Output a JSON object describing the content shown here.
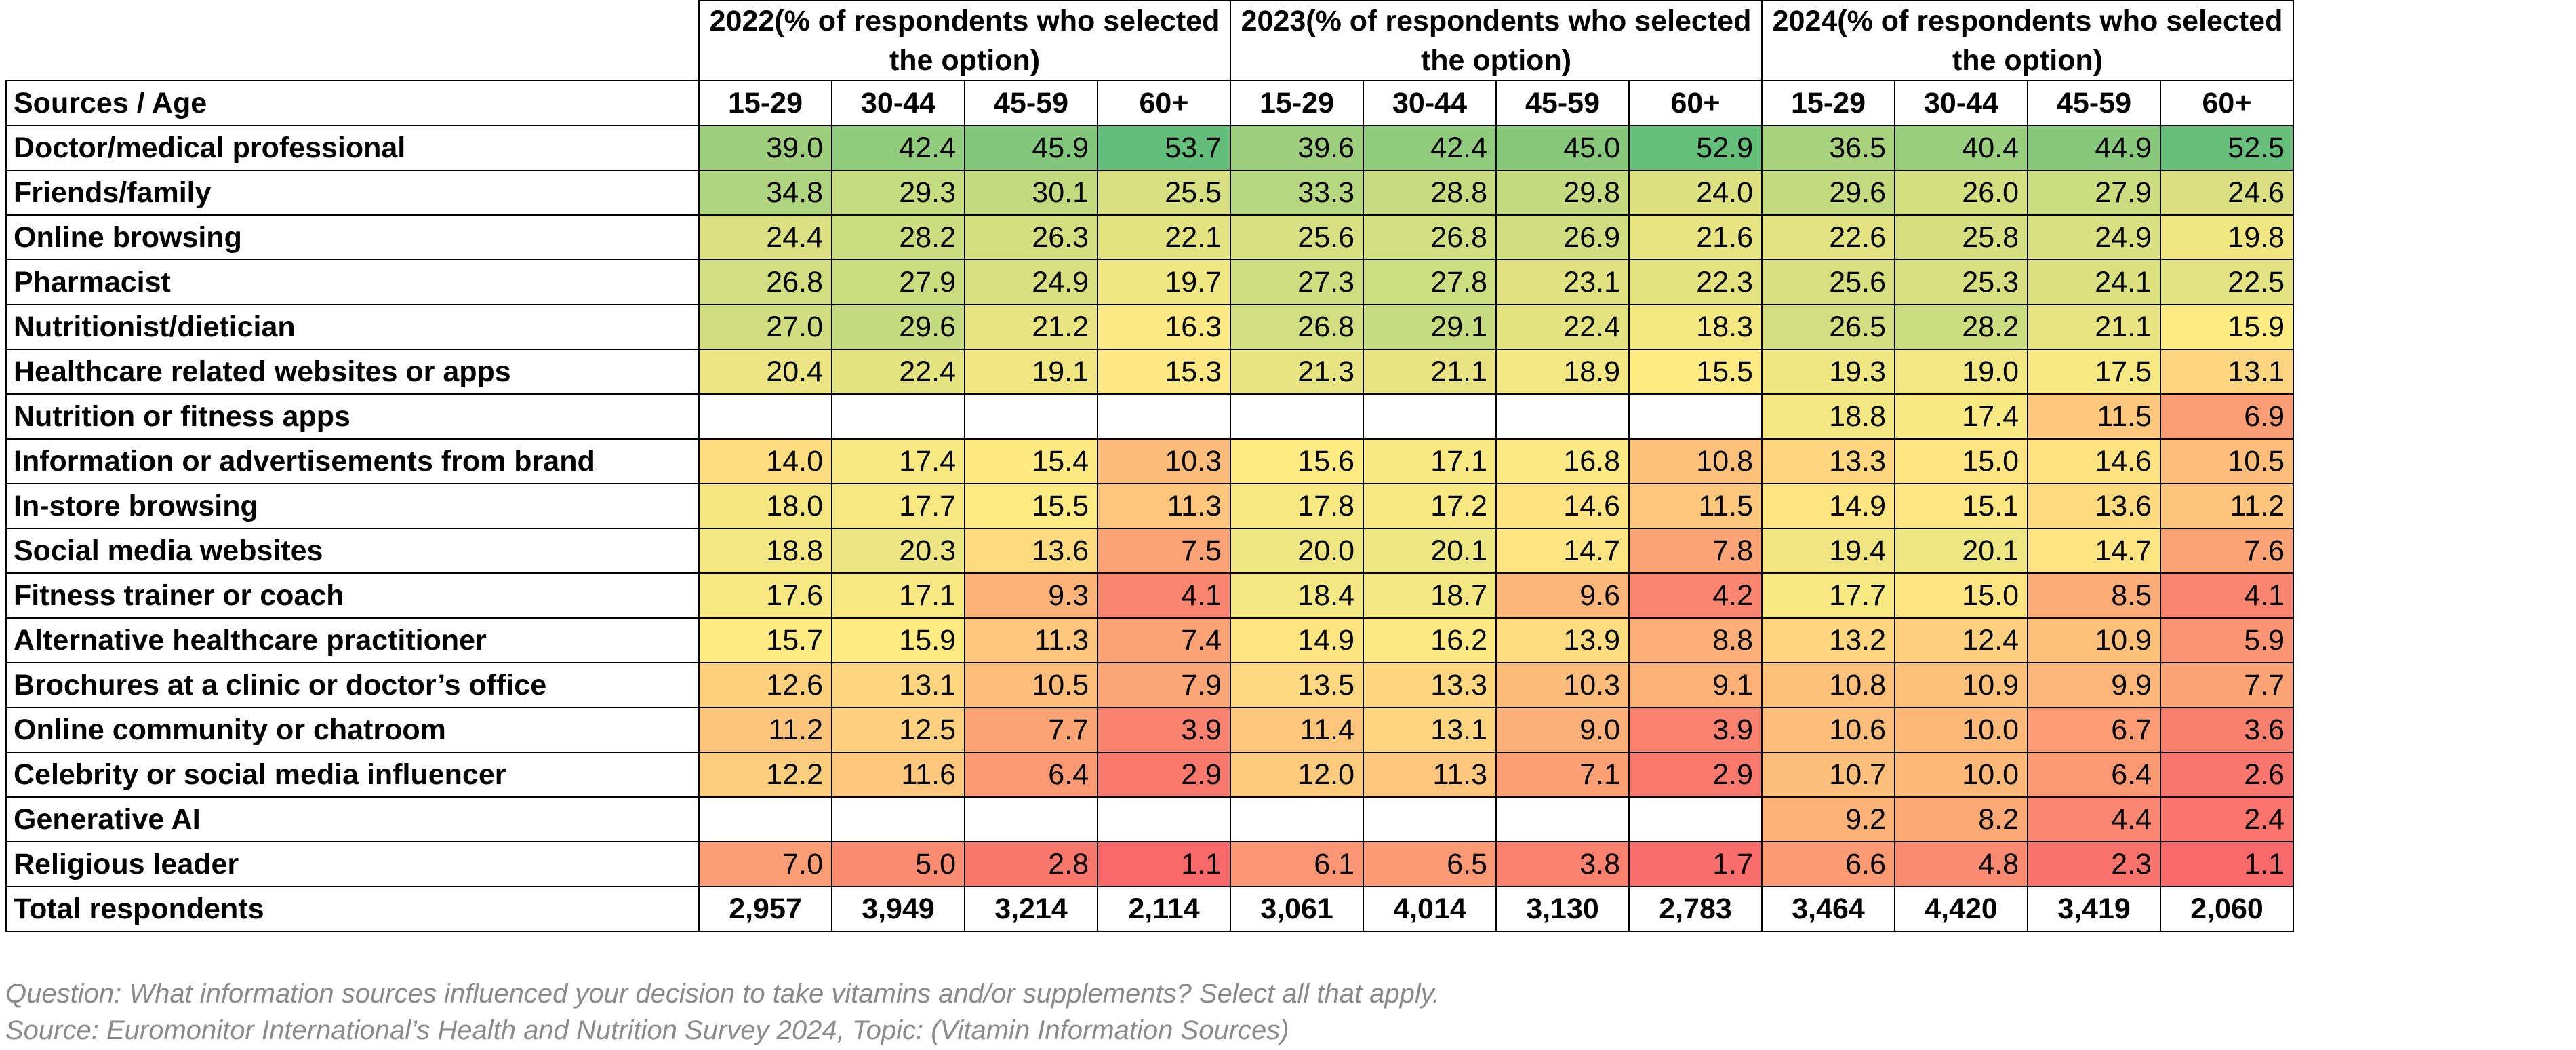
{
  "table": {
    "header_label": "Sources / Age",
    "groups": [
      "2022(% of respondents who selected the option)",
      "2023(% of respondents who selected the option)",
      "2024(% of respondents who selected the option)"
    ],
    "age_columns": [
      "15-29",
      "30-44",
      "45-59",
      "60+"
    ],
    "rows": [
      {
        "label": "Doctor/medical professional",
        "values": [
          "39.0",
          "42.4",
          "45.9",
          "53.7",
          "39.6",
          "42.4",
          "45.0",
          "52.9",
          "36.5",
          "40.4",
          "44.9",
          "52.5"
        ]
      },
      {
        "label": "Friends/family",
        "values": [
          "34.8",
          "29.3",
          "30.1",
          "25.5",
          "33.3",
          "28.8",
          "29.8",
          "24.0",
          "29.6",
          "26.0",
          "27.9",
          "24.6"
        ]
      },
      {
        "label": "Online browsing",
        "values": [
          "24.4",
          "28.2",
          "26.3",
          "22.1",
          "25.6",
          "26.8",
          "26.9",
          "21.6",
          "22.6",
          "25.8",
          "24.9",
          "19.8"
        ]
      },
      {
        "label": "Pharmacist",
        "values": [
          "26.8",
          "27.9",
          "24.9",
          "19.7",
          "27.3",
          "27.8",
          "23.1",
          "22.3",
          "25.6",
          "25.3",
          "24.1",
          "22.5"
        ]
      },
      {
        "label": "Nutritionist/dietician",
        "values": [
          "27.0",
          "29.6",
          "21.2",
          "16.3",
          "26.8",
          "29.1",
          "22.4",
          "18.3",
          "26.5",
          "28.2",
          "21.1",
          "15.9"
        ]
      },
      {
        "label": "Healthcare related websites or apps",
        "values": [
          "20.4",
          "22.4",
          "19.1",
          "15.3",
          "21.3",
          "21.1",
          "18.9",
          "15.5",
          "19.3",
          "19.0",
          "17.5",
          "13.1"
        ]
      },
      {
        "label": "Nutrition or fitness apps",
        "values": [
          "",
          "",
          "",
          "",
          "",
          "",
          "",
          "",
          "18.8",
          "17.4",
          "11.5",
          "6.9"
        ]
      },
      {
        "label": "Information or advertisements from brand",
        "values": [
          "14.0",
          "17.4",
          "15.4",
          "10.3",
          "15.6",
          "17.1",
          "16.8",
          "10.8",
          "13.3",
          "15.0",
          "14.6",
          "10.5"
        ]
      },
      {
        "label": "In-store browsing",
        "values": [
          "18.0",
          "17.7",
          "15.5",
          "11.3",
          "17.8",
          "17.2",
          "14.6",
          "11.5",
          "14.9",
          "15.1",
          "13.6",
          "11.2"
        ]
      },
      {
        "label": "Social media websites",
        "values": [
          "18.8",
          "20.3",
          "13.6",
          "7.5",
          "20.0",
          "20.1",
          "14.7",
          "7.8",
          "19.4",
          "20.1",
          "14.7",
          "7.6"
        ]
      },
      {
        "label": "Fitness trainer or coach",
        "values": [
          "17.6",
          "17.1",
          "9.3",
          "4.1",
          "18.4",
          "18.7",
          "9.6",
          "4.2",
          "17.7",
          "15.0",
          "8.5",
          "4.1"
        ]
      },
      {
        "label": "Alternative healthcare practitioner",
        "values": [
          "15.7",
          "15.9",
          "11.3",
          "7.4",
          "14.9",
          "16.2",
          "13.9",
          "8.8",
          "13.2",
          "12.4",
          "10.9",
          "5.9"
        ]
      },
      {
        "label": "Brochures at a clinic or doctor’s office",
        "values": [
          "12.6",
          "13.1",
          "10.5",
          "7.9",
          "13.5",
          "13.3",
          "10.3",
          "9.1",
          "10.8",
          "10.9",
          "9.9",
          "7.7"
        ]
      },
      {
        "label": "Online community or chatroom",
        "values": [
          "11.2",
          "12.5",
          "7.7",
          "3.9",
          "11.4",
          "13.1",
          "9.0",
          "3.9",
          "10.6",
          "10.0",
          "6.7",
          "3.6"
        ]
      },
      {
        "label": "Celebrity or social media influencer",
        "values": [
          "12.2",
          "11.6",
          "6.4",
          "2.9",
          "12.0",
          "11.3",
          "7.1",
          "2.9",
          "10.7",
          "10.0",
          "6.4",
          "2.6"
        ]
      },
      {
        "label": "Generative AI",
        "values": [
          "",
          "",
          "",
          "",
          "",
          "",
          "",
          "",
          "9.2",
          "8.2",
          "4.4",
          "2.4"
        ]
      },
      {
        "label": "Religious leader",
        "values": [
          "7.0",
          "5.0",
          "2.8",
          "1.1",
          "6.1",
          "6.5",
          "3.8",
          "1.7",
          "6.6",
          "4.8",
          "2.3",
          "1.1"
        ]
      }
    ],
    "total_row": {
      "label": "Total respondents",
      "values": [
        "2,957",
        "3,949",
        "3,214",
        "2,114",
        "3,061",
        "4,014",
        "3,130",
        "2,783",
        "3,464",
        "4,420",
        "3,419",
        "2,060"
      ]
    },
    "color_scale": {
      "low": "#f8696b",
      "mid": "#ffeb84",
      "high": "#63be7b"
    }
  },
  "notes": {
    "question": "Question:   What information sources influenced your decision to take vitamins and/or supplements? Select all that apply.",
    "source": "Source: Euromonitor International’s Health and Nutrition Survey 2024, Topic: (Vitamin Information Sources)"
  }
}
